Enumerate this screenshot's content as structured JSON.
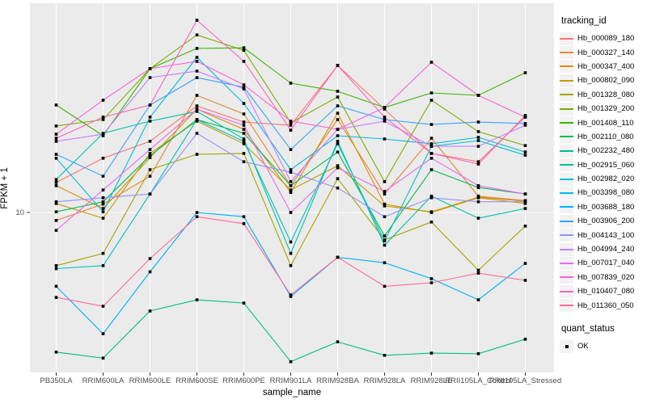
{
  "chart_data": {
    "type": "line",
    "title": "",
    "xlabel": "sample_name",
    "ylabel": "FPKM + 1",
    "y_scale": "log10",
    "y_axis": {
      "tick_labels": [
        "10"
      ],
      "range_approx": [
        1,
        210
      ]
    },
    "grid": {
      "vertical_per_category": true,
      "horizontal_breaks": [
        10
      ],
      "color": "#FFFFFF"
    },
    "panel_background": "#EBEBEB",
    "point_shape": "filled-black-square",
    "legend_position": "right",
    "categories": [
      "PB350LA",
      "RRIM600LA",
      "RRIM600LE",
      "RRIM600SE",
      "RRIM600PE",
      "RRIM901LA",
      "RRIM928BA",
      "RRIM928LA",
      "RRIM928LE",
      "RRII105LA_Control",
      "RRII105LA_Stressed"
    ],
    "legend": {
      "title": "tracking_id"
    },
    "legend2": {
      "title": "quant_status",
      "items": [
        "OK"
      ]
    },
    "series": [
      {
        "name": "Hb_000089_180",
        "color": "#F8766D",
        "values": [
          15.5,
          22.1,
          28.3,
          47.5,
          37.5,
          35.8,
          85.8,
          45.3,
          23.7,
          21.0,
          40.3
        ]
      },
      {
        "name": "Hb_000327_140",
        "color": "#EA8331",
        "values": [
          8.9,
          11.3,
          17.0,
          55.4,
          42.2,
          14.8,
          38.9,
          13.1,
          29.6,
          12.7,
          11.9
        ]
      },
      {
        "name": "Hb_000347_400",
        "color": "#D89000",
        "values": [
          14.8,
          10.6,
          22.3,
          45.3,
          33.7,
          13.4,
          42.7,
          11.3,
          10.0,
          12.4,
          11.4
        ]
      },
      {
        "name": "Hb_000802_090",
        "color": "#C09B00",
        "values": [
          11.4,
          9.2,
          23.7,
          38.0,
          27.3,
          13.9,
          19.8,
          11.0,
          10.1,
          12.5,
          11.8
        ]
      },
      {
        "name": "Hb_001328_080",
        "color": "#A3A500",
        "values": [
          4.6,
          5.5,
          18.7,
          23.4,
          23.7,
          4.6,
          16.4,
          6.7,
          8.7,
          4.3,
          8.2
        ]
      },
      {
        "name": "Hb_001329_200",
        "color": "#7CAE00",
        "values": [
          35.4,
          38.9,
          81.8,
          134.0,
          107.0,
          37.1,
          54.1,
          15.7,
          51.6,
          32.6,
          26.6
        ]
      },
      {
        "name": "Hb_001408_110",
        "color": "#39B600",
        "values": [
          48.1,
          30.7,
          81.8,
          110.0,
          111.0,
          66.2,
          58.8,
          46.4,
          57.4,
          55.4,
          77.1
        ]
      },
      {
        "name": "Hb_002110_080",
        "color": "#00BB4E",
        "values": [
          10.1,
          11.7,
          22.9,
          38.9,
          31.8,
          14.8,
          24.2,
          7.1,
          18.7,
          14.4,
          13.1
        ]
      },
      {
        "name": "Hb_002232_480",
        "color": "#00C087",
        "values": [
          1.3,
          1.19,
          2.37,
          2.79,
          2.66,
          1.13,
          1.51,
          1.24,
          1.28,
          1.27,
          1.57
        ]
      },
      {
        "name": "Hb_002915_060",
        "color": "#00C1A3",
        "values": [
          16.2,
          31.8,
          38.0,
          43.8,
          29.3,
          5.5,
          28.3,
          6.2,
          12.7,
          9.2,
          10.6
        ]
      },
      {
        "name": "Hb_002982_020",
        "color": "#00BFC4",
        "values": [
          4.4,
          4.6,
          13.1,
          38.9,
          28.3,
          6.5,
          27.3,
          6.6,
          26.3,
          28.6,
          23.1
        ]
      },
      {
        "name": "Hb_003398_080",
        "color": "#00BAE0",
        "values": [
          22.1,
          10.1,
          40.3,
          96.5,
          49.2,
          18.7,
          30.7,
          29.3,
          27.3,
          30.0,
          24.2
        ]
      },
      {
        "name": "Hb_003688_180",
        "color": "#00B0F6",
        "values": [
          3.4,
          1.7,
          4.2,
          10.0,
          9.4,
          2.93,
          5.2,
          4.8,
          3.8,
          2.79,
          4.75
        ]
      },
      {
        "name": "Hb_003906_200",
        "color": "#35A2FF",
        "values": [
          23.4,
          17.0,
          48.1,
          71.8,
          62.4,
          25.1,
          47.5,
          38.9,
          36.2,
          37.5,
          36.7
        ]
      },
      {
        "name": "Hb_004143_100",
        "color": "#9590FF",
        "values": [
          11.7,
          12.4,
          13.1,
          31.8,
          21.0,
          18.0,
          14.3,
          9.4,
          12.4,
          11.7,
          11.7
        ]
      },
      {
        "name": "Hb_004994_240",
        "color": "#C77CFF",
        "values": [
          28.3,
          31.4,
          71.8,
          79.0,
          60.9,
          15.7,
          33.7,
          38.0,
          26.3,
          26.3,
          35.8
        ]
      },
      {
        "name": "Hb_007017_040",
        "color": "#E76BF3",
        "values": [
          7.7,
          13.9,
          25.1,
          45.3,
          35.8,
          10.0,
          19.2,
          13.6,
          22.1,
          14.8,
          13.1
        ]
      },
      {
        "name": "Hb_007839_020",
        "color": "#FA62DB",
        "values": [
          31.4,
          51.6,
          81.8,
          91.0,
          64.6,
          38.0,
          33.7,
          46.4,
          89.9,
          55.4,
          40.3
        ]
      },
      {
        "name": "Hb_010407_080",
        "color": "#FF62BC",
        "values": [
          29.6,
          40.3,
          48.1,
          166.0,
          91.0,
          33.3,
          85.8,
          40.3,
          23.7,
          20.3,
          41.3
        ]
      },
      {
        "name": "Hb_011360_050",
        "color": "#FF6A98",
        "values": [
          2.89,
          2.54,
          5.1,
          9.4,
          8.5,
          3.0,
          5.2,
          3.4,
          3.58,
          4.12,
          3.71
        ]
      }
    ]
  }
}
